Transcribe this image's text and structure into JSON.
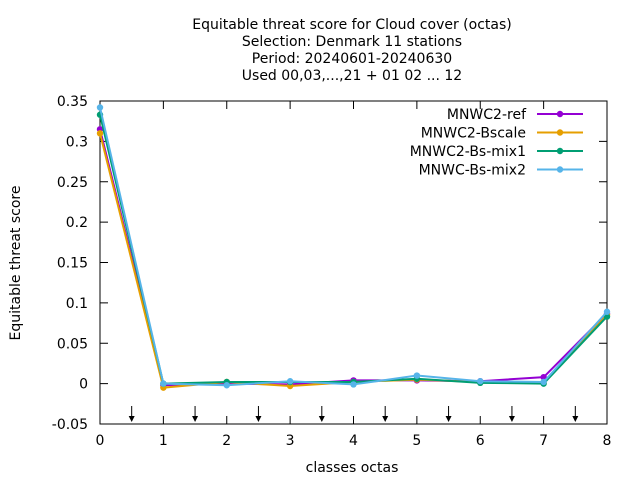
{
  "chart_data": {
    "type": "line",
    "title_lines": [
      "Equitable threat score  for Cloud cover (octas)",
      "Selection: Denmark     11 stations",
      "Period: 20240601-20240630",
      "Used 00,03,...,21 + 01 02 ... 12"
    ],
    "xlabel": "classes octas",
    "ylabel": "Equitable threat score",
    "xlim": [
      0,
      8
    ],
    "ylim": [
      -0.05,
      0.35
    ],
    "xticks": [
      "0",
      "1",
      "2",
      "3",
      "4",
      "5",
      "6",
      "7",
      "8"
    ],
    "yticks": [
      "-0.05",
      "0",
      "0.05",
      "0.1",
      "0.15",
      "0.2",
      "0.25",
      "0.3",
      "0.35"
    ],
    "ytick_values": [
      -0.05,
      0,
      0.05,
      0.1,
      0.15,
      0.2,
      0.25,
      0.3,
      0.35
    ],
    "grid": false,
    "legend_position": "top-right",
    "arrow_marks_x": [
      0.5,
      1.5,
      2.5,
      3.5,
      4.5,
      5.5,
      6.5,
      7.5
    ],
    "x": [
      0,
      1,
      2,
      3,
      4,
      5,
      6,
      7,
      8
    ],
    "series": [
      {
        "name": "MNWC2-ref",
        "color": "#9400d3",
        "values": [
          0.315,
          -0.002,
          0.0,
          -0.001,
          0.004,
          0.004,
          0.003,
          0.008,
          0.087
        ]
      },
      {
        "name": "MNWC2-Bscale",
        "color": "#e69f00",
        "values": [
          0.31,
          -0.005,
          0.002,
          -0.003,
          0.002,
          0.005,
          0.002,
          0.001,
          0.085
        ]
      },
      {
        "name": "MNWC2-Bs-mix1",
        "color": "#009e73",
        "values": [
          0.333,
          0.0,
          0.002,
          0.002,
          0.002,
          0.006,
          0.001,
          0.0,
          0.083
        ]
      },
      {
        "name": "MNWC-Bs-mix2",
        "color": "#56b4e9",
        "values": [
          0.342,
          0.0,
          -0.002,
          0.003,
          -0.001,
          0.01,
          0.003,
          0.002,
          0.089
        ]
      }
    ]
  }
}
